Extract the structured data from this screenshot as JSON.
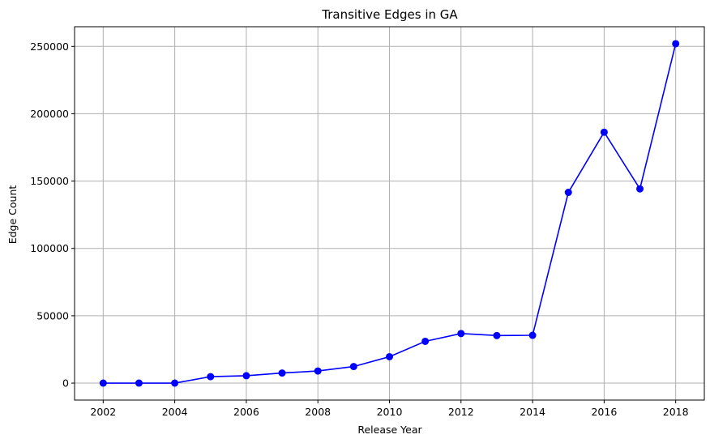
{
  "chart_data": {
    "type": "line",
    "title": "Transitive Edges in GA",
    "xlabel": "Release Year",
    "ylabel": "Edge Count",
    "xlim": [
      2001.2,
      2018.8
    ],
    "ylim": [
      -12600,
      264600
    ],
    "xticks": [
      2002,
      2004,
      2006,
      2008,
      2010,
      2012,
      2014,
      2016,
      2018
    ],
    "yticks": [
      0,
      50000,
      100000,
      150000,
      200000,
      250000
    ],
    "grid": true,
    "series": [
      {
        "color": "#0000ff",
        "marker": "circle",
        "x": [
          2002,
          2003,
          2004,
          2005,
          2006,
          2007,
          2008,
          2009,
          2010,
          2011,
          2012,
          2013,
          2014,
          2015,
          2016,
          2017,
          2018
        ],
        "y": [
          0,
          0,
          0,
          4800,
          5500,
          7500,
          9000,
          12300,
          19600,
          31000,
          36800,
          35300,
          35500,
          141600,
          186300,
          144200,
          252000
        ]
      }
    ]
  }
}
